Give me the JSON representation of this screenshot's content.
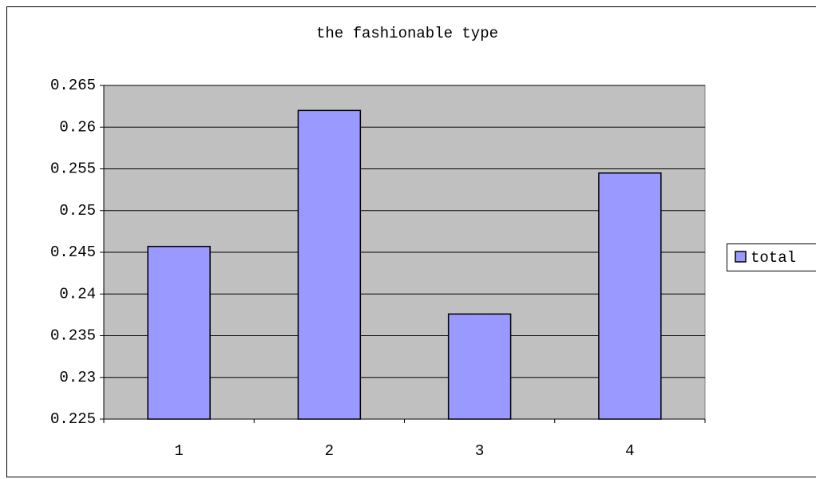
{
  "chart_data": {
    "type": "bar",
    "title": "the fashionable type",
    "categories": [
      "1",
      "2",
      "3",
      "4"
    ],
    "series": [
      {
        "name": "total",
        "color": "#9999ff",
        "values": [
          0.2457,
          0.262,
          0.2376,
          0.2545
        ]
      }
    ],
    "ylim": [
      0.225,
      0.265
    ],
    "yticks": [
      0.225,
      0.23,
      0.235,
      0.24,
      0.245,
      0.25,
      0.255,
      0.26,
      0.265
    ],
    "grid": true,
    "legend": "right",
    "plot_background": "#c0c0c0"
  }
}
